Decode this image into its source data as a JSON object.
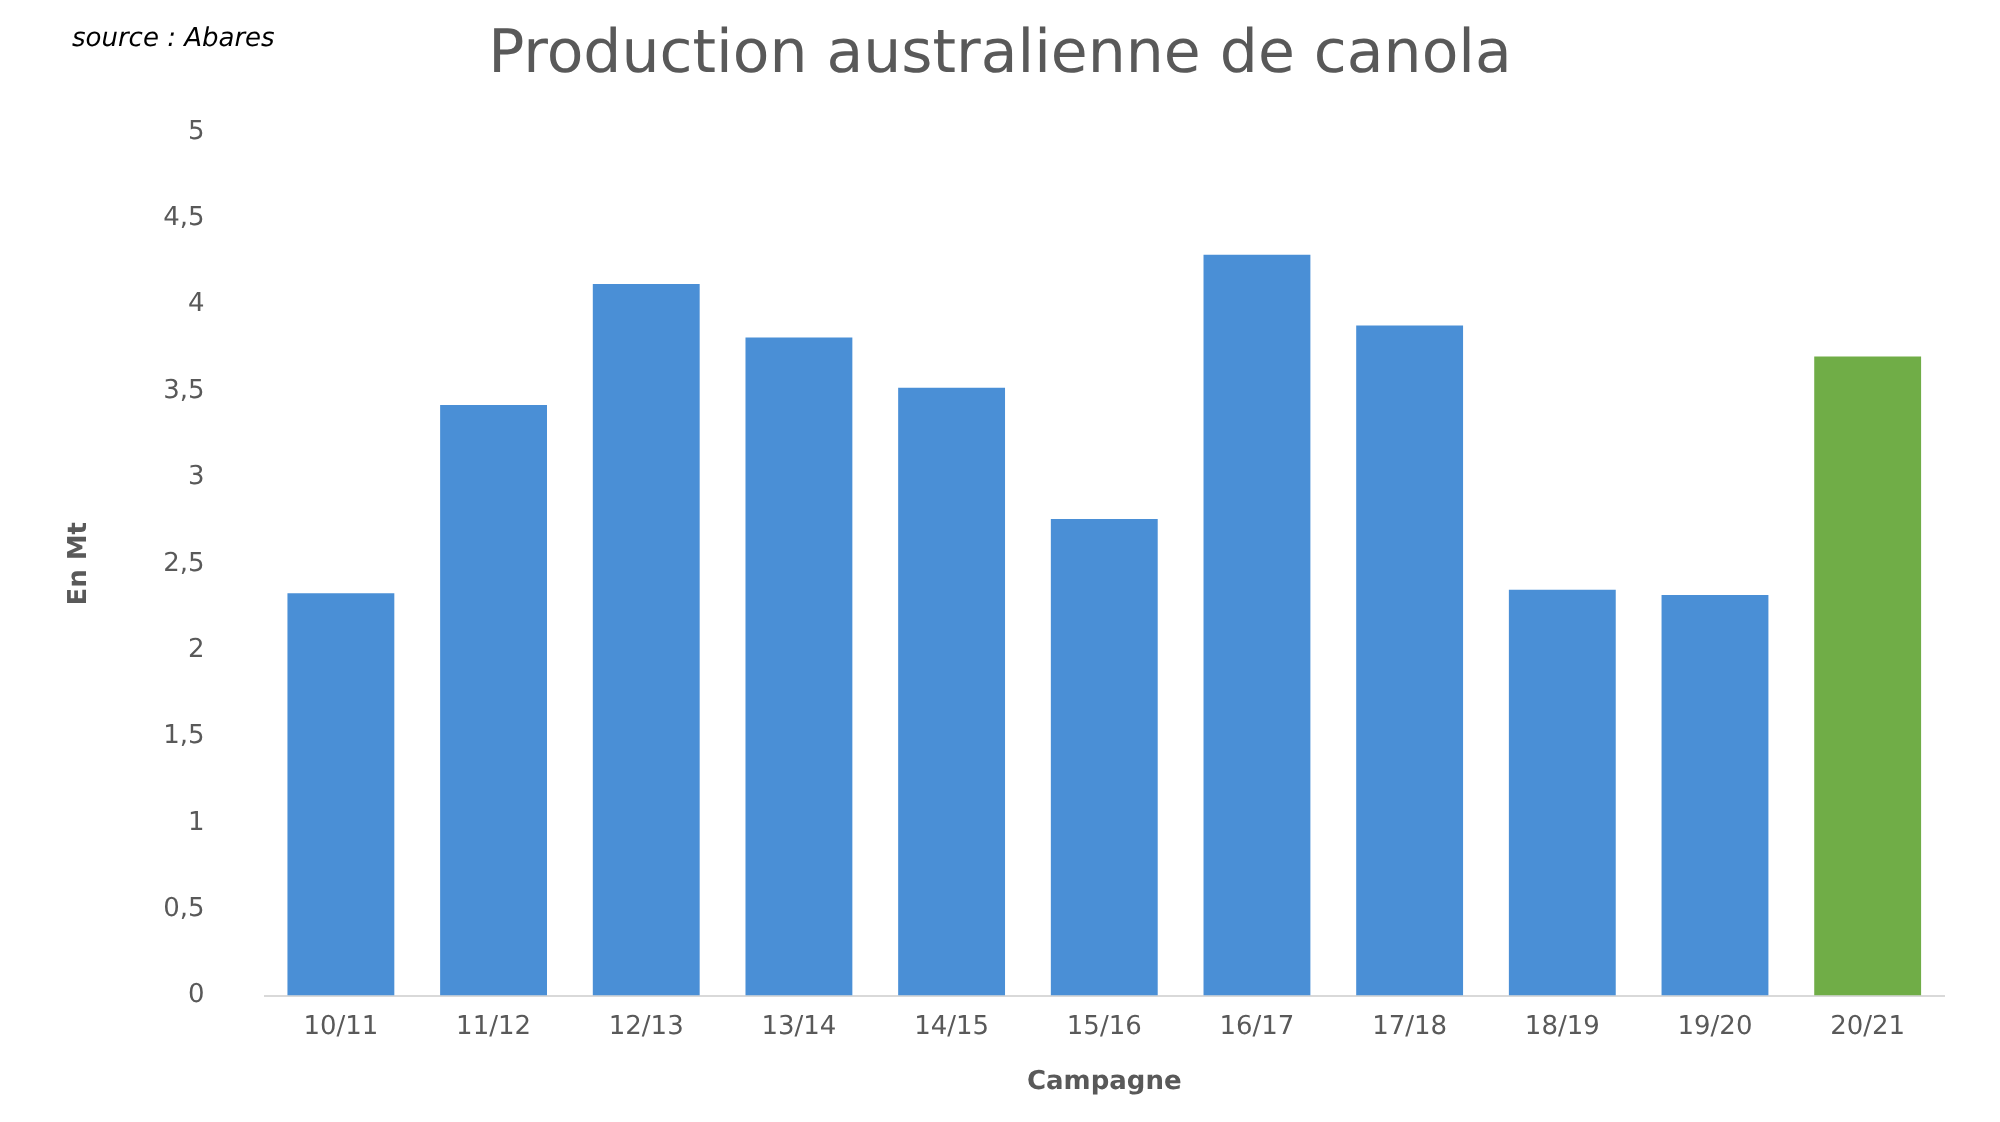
{
  "chart_data": {
    "type": "bar",
    "title": "Production australienne de canola",
    "xlabel": "Campagne",
    "ylabel": "En Mt",
    "categories": [
      "10/11",
      "11/12",
      "12/13",
      "13/14",
      "14/15",
      "15/16",
      "16/17",
      "17/18",
      "18/19",
      "19/20",
      "20/21"
    ],
    "values": [
      2.33,
      3.42,
      4.12,
      3.81,
      3.52,
      2.76,
      4.29,
      3.88,
      2.35,
      2.32,
      3.7
    ],
    "colors": [
      "#4a8fd6",
      "#4a8fd6",
      "#4a8fd6",
      "#4a8fd6",
      "#4a8fd6",
      "#4a8fd6",
      "#4a8fd6",
      "#4a8fd6",
      "#4a8fd6",
      "#4a8fd6",
      "#70ad47"
    ],
    "ylim": [
      0,
      5
    ],
    "yticks": [
      0,
      {
        "value": 0.5,
        "label": "0,5"
      },
      1,
      {
        "value": 1.5,
        "label": "1,5"
      },
      2,
      {
        "value": 2.5,
        "label": "2,5"
      },
      3,
      {
        "value": 3.5,
        "label": "3,5"
      },
      4,
      {
        "value": 4.5,
        "label": "4,5"
      },
      5
    ],
    "annotations": [
      "source : Abares"
    ]
  }
}
